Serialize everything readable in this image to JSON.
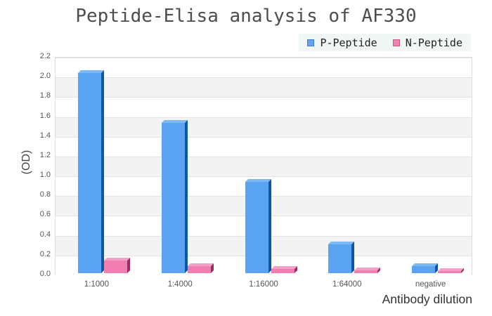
{
  "chart_data": {
    "type": "bar",
    "title": "Peptide-Elisa analysis of AF330",
    "xlabel": "Antibody dilution",
    "ylabel": "(OD)",
    "categories": [
      "1:1000",
      "1:4000",
      "1:16000",
      "1:64000",
      "negative"
    ],
    "series": [
      {
        "name": "P-Peptide",
        "values": [
          2.02,
          1.52,
          0.92,
          0.29,
          0.07
        ],
        "face_color": "#59a3f0",
        "side_color": "#0d57a8",
        "top_color": "#7cb9f5",
        "legend_fill": "#66a3f2",
        "legend_border": "#3f7dc4"
      },
      {
        "name": "N-Peptide",
        "values": [
          0.13,
          0.07,
          0.04,
          0.03,
          0.02
        ],
        "face_color": "#f07fb0",
        "side_color": "#9c2c61",
        "top_color": "#f5a0c6",
        "legend_fill": "#ef82ae",
        "legend_border": "#c05a87"
      }
    ],
    "ylim": [
      0,
      2.2
    ],
    "ytick_step": 0.2,
    "yticks": [
      "0.0",
      "0.2",
      "0.4",
      "0.6",
      "0.8",
      "1.0",
      "1.2",
      "1.4",
      "1.6",
      "1.8",
      "2.0",
      "2.2"
    ],
    "grid": "horizontal-bands-alternating",
    "band_colors": [
      "#ffffff",
      "#f3f3f3"
    ],
    "legend_position": "top-right",
    "legend_background": "#f0f7f4"
  }
}
